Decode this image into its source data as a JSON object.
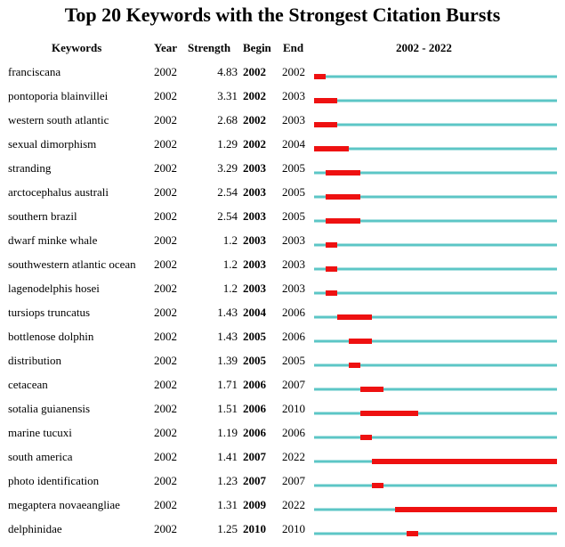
{
  "title": "Top 20 Keywords with the Strongest Citation Bursts",
  "headers": {
    "keywords": "Keywords",
    "year": "Year",
    "strength": "Strength",
    "begin": "Begin",
    "end": "End",
    "range": "2002 - 2022"
  },
  "colors": {
    "timeline": "#5cc6c6",
    "burst": "#ee1111"
  },
  "chart_data": {
    "type": "table",
    "title": "Top 20 Keywords with the Strongest Citation Bursts",
    "timeline_start": 2002,
    "timeline_end": 2022,
    "rows": [
      {
        "keyword": "franciscana",
        "year": "2002",
        "strength": "4.83",
        "begin": "2002",
        "end": "2002"
      },
      {
        "keyword": "pontoporia blainvillei",
        "year": "2002",
        "strength": "3.31",
        "begin": "2002",
        "end": "2003"
      },
      {
        "keyword": "western south atlantic",
        "year": "2002",
        "strength": "2.68",
        "begin": "2002",
        "end": "2003"
      },
      {
        "keyword": "sexual dimorphism",
        "year": "2002",
        "strength": "1.29",
        "begin": "2002",
        "end": "2004"
      },
      {
        "keyword": "stranding",
        "year": "2002",
        "strength": "3.29",
        "begin": "2003",
        "end": "2005"
      },
      {
        "keyword": "arctocephalus australi",
        "year": "2002",
        "strength": "2.54",
        "begin": "2003",
        "end": "2005"
      },
      {
        "keyword": "southern brazil",
        "year": "2002",
        "strength": "2.54",
        "begin": "2003",
        "end": "2005"
      },
      {
        "keyword": "dwarf minke whale",
        "year": "2002",
        "strength": "1.2",
        "begin": "2003",
        "end": "2003"
      },
      {
        "keyword": "southwestern atlantic ocean",
        "year": "2002",
        "strength": "1.2",
        "begin": "2003",
        "end": "2003"
      },
      {
        "keyword": "lagenodelphis hosei",
        "year": "2002",
        "strength": "1.2",
        "begin": "2003",
        "end": "2003"
      },
      {
        "keyword": "tursiops truncatus",
        "year": "2002",
        "strength": "1.43",
        "begin": "2004",
        "end": "2006"
      },
      {
        "keyword": "bottlenose dolphin",
        "year": "2002",
        "strength": "1.43",
        "begin": "2005",
        "end": "2006"
      },
      {
        "keyword": "distribution",
        "year": "2002",
        "strength": "1.39",
        "begin": "2005",
        "end": "2005"
      },
      {
        "keyword": "cetacean",
        "year": "2002",
        "strength": "1.71",
        "begin": "2006",
        "end": "2007"
      },
      {
        "keyword": "sotalia guianensis",
        "year": "2002",
        "strength": "1.51",
        "begin": "2006",
        "end": "2010"
      },
      {
        "keyword": "marine tucuxi",
        "year": "2002",
        "strength": "1.19",
        "begin": "2006",
        "end": "2006"
      },
      {
        "keyword": "south america",
        "year": "2002",
        "strength": "1.41",
        "begin": "2007",
        "end": "2022"
      },
      {
        "keyword": "photo identification",
        "year": "2002",
        "strength": "1.23",
        "begin": "2007",
        "end": "2007"
      },
      {
        "keyword": "megaptera novaeangliae",
        "year": "2002",
        "strength": "1.31",
        "begin": "2009",
        "end": "2022"
      },
      {
        "keyword": "delphinidae",
        "year": "2002",
        "strength": "1.25",
        "begin": "2010",
        "end": "2010"
      }
    ]
  }
}
